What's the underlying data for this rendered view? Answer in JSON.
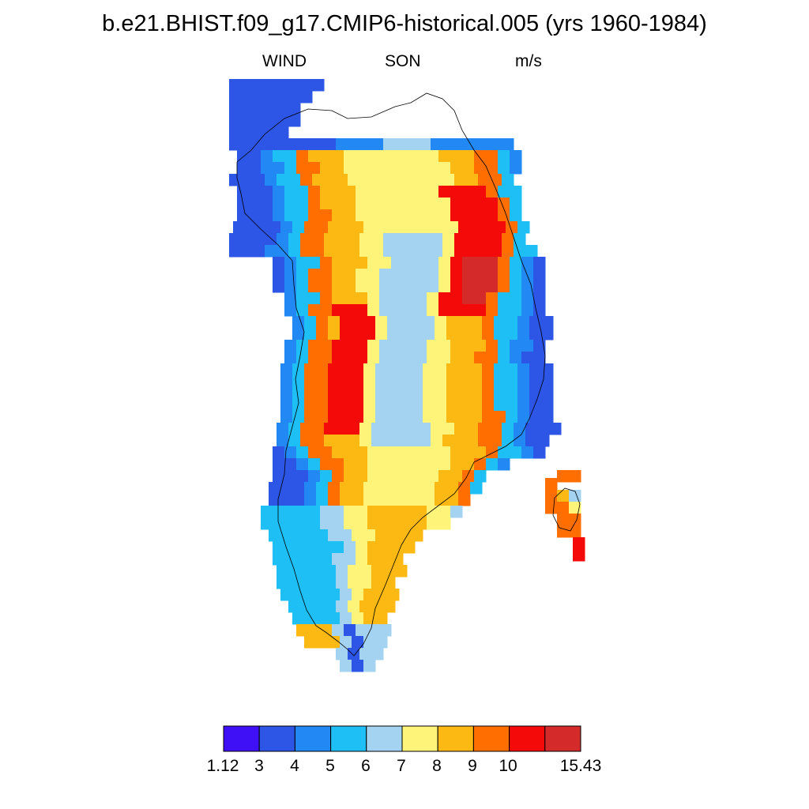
{
  "title": "b.e21.BHIST.f09_g17.CMIP6-historical.005 (yrs 1960-1984)",
  "subtitle": {
    "variable": "WIND",
    "season": "SON",
    "units": "m/s"
  },
  "colorbar": {
    "colors": [
      "#3f0ff5",
      "#2d55e6",
      "#2288f4",
      "#1ebff5",
      "#a3d3f0",
      "#fff47a",
      "#fdb913",
      "#ff6e00",
      "#f50a0a",
      "#d52a2a"
    ],
    "labels": [
      "1.12",
      "3",
      "4",
      "5",
      "6",
      "7",
      "8",
      "9",
      "10",
      "15.43"
    ]
  },
  "chart_data": {
    "type": "heatmap",
    "title": "b.e21.BHIST.f09_g17.CMIP6-historical.005 (yrs 1960-1984)",
    "variable": "WIND",
    "season": "SON",
    "units": "m/s",
    "region": "Greenland",
    "scale": {
      "min": 1.12,
      "max": 15.43,
      "boundaries": [
        3,
        4,
        5,
        6,
        7,
        8,
        9,
        10
      ]
    }
  }
}
